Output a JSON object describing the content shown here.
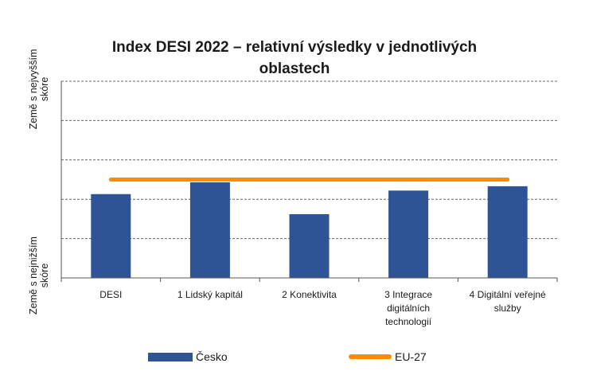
{
  "chart_data": {
    "type": "bar",
    "title": "Index DESI 2022 – relativní výsledky v jednotlivých oblastech",
    "title_line1": "Index DESI 2022 – relativní výsledky v jednotlivých",
    "title_line2": "oblastech",
    "ylabel_top": [
      "Země s nejvyšším",
      "skóre"
    ],
    "ylabel_bottom": [
      "Země s nejnižším",
      "skóre"
    ],
    "categories": [
      [
        "DESI"
      ],
      [
        "1 Lidský kapitál"
      ],
      [
        "2 Konektivita"
      ],
      [
        "3 Integrace",
        "digitálních",
        "technologií"
      ],
      [
        "4 Digitální veřejné",
        "služby"
      ]
    ],
    "ylim": [
      0,
      5
    ],
    "grid": true,
    "series": [
      {
        "name": "Česko",
        "type": "bar",
        "color": "#2f5496",
        "values": [
          2.13,
          2.43,
          1.62,
          2.22,
          2.33
        ]
      },
      {
        "name": "EU-27",
        "type": "line",
        "color": "#ff8c00",
        "values": [
          2.5,
          2.5,
          2.5,
          2.5,
          2.5
        ]
      }
    ],
    "legend_position": "bottom"
  }
}
